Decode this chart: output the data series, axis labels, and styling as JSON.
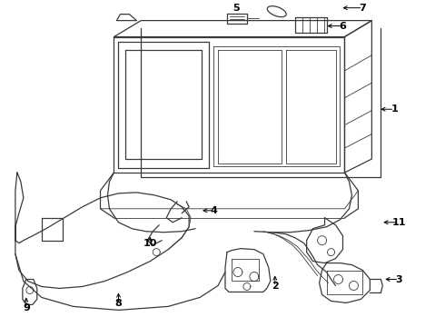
{
  "background_color": "#ffffff",
  "line_color": "#3a3a3a",
  "fig_width": 4.9,
  "fig_height": 3.6,
  "dpi": 100
}
